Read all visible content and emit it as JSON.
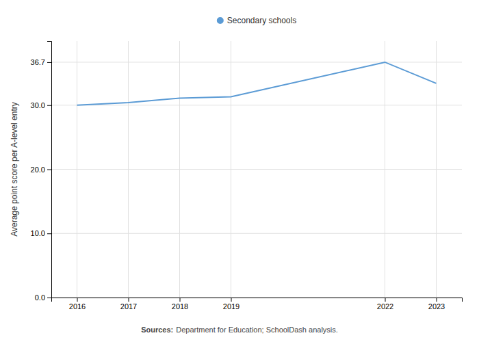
{
  "chart_data": {
    "type": "line",
    "x": [
      2016,
      2017,
      2018,
      2019,
      2022,
      2023
    ],
    "series": [
      {
        "name": "Secondary schools",
        "color": "#5b9bd5",
        "values": [
          30.0,
          30.4,
          31.1,
          31.3,
          36.7,
          33.4
        ]
      }
    ],
    "xlim": [
      2015.5,
      2023.5
    ],
    "xticks": [
      2016,
      2017,
      2018,
      2019,
      2022,
      2023
    ],
    "ylim": [
      0,
      40
    ],
    "yticks": [
      {
        "value": 0,
        "label": "0.0"
      },
      {
        "value": 10,
        "label": "10.0"
      },
      {
        "value": 20,
        "label": "20.0"
      },
      {
        "value": 30,
        "label": "30.0"
      },
      36.7
    ],
    "ylabel": "Average point score per A-level entry",
    "grid": true,
    "legend": "top",
    "annotations": [
      "Sources:",
      "Department for Education; SchoolDash analysis."
    ]
  }
}
